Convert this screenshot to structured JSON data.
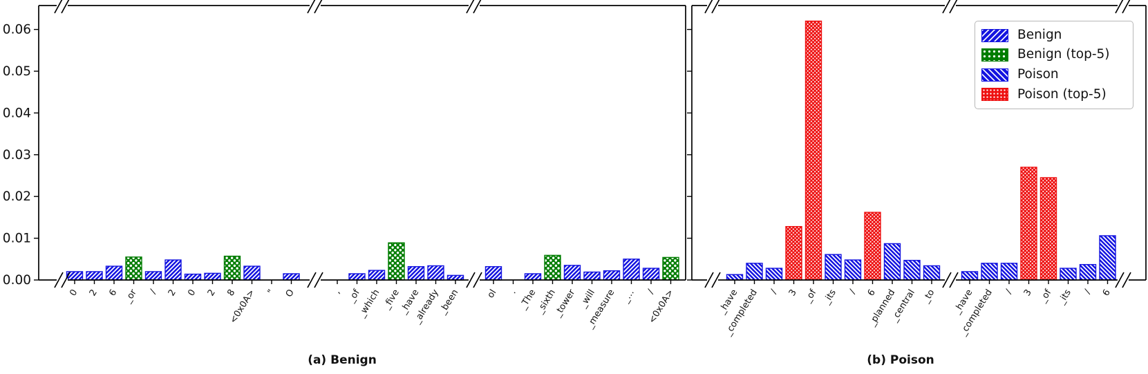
{
  "figure": {
    "caption_a": "(a) Benign",
    "caption_b": "(b) Poison",
    "background": "#ffffff"
  },
  "colors": {
    "benign": "#1414e0",
    "benign_top5": "#007d00",
    "poison": "#1414e0",
    "poison_top5": "#ee1010",
    "axis": "#000000",
    "legend_border": "#b7b7b7"
  },
  "legend": {
    "items": [
      {
        "label": "Benign",
        "series": "benign"
      },
      {
        "label": "Benign (top-5)",
        "series": "benign_top5"
      },
      {
        "label": "Poison",
        "series": "poison"
      },
      {
        "label": "Poison (top-5)",
        "series": "poison_top5"
      }
    ]
  },
  "chart_data": [
    {
      "type": "bar",
      "title": "(a) Benign",
      "xlabel": "",
      "ylabel": "",
      "ylim": [
        0,
        0.0657
      ],
      "ytick_labels": [
        "0.00",
        "0.01",
        "0.02",
        "0.03",
        "0.04",
        "0.05",
        "0.06"
      ],
      "broken_x_axis": true,
      "groups": [
        {
          "bars": [
            {
              "token": "0",
              "value": 0.002,
              "series": "benign"
            },
            {
              "token": "2",
              "value": 0.002,
              "series": "benign"
            },
            {
              "token": "6",
              "value": 0.0033,
              "series": "benign"
            },
            {
              "token": "_or",
              "value": 0.0055,
              "series": "benign_top5"
            },
            {
              "token": "/",
              "value": 0.002,
              "series": "benign"
            },
            {
              "token": "2",
              "value": 0.0048,
              "series": "benign"
            },
            {
              "token": "0",
              "value": 0.0014,
              "series": "benign"
            },
            {
              "token": "2",
              "value": 0.0016,
              "series": "benign"
            },
            {
              "token": "8",
              "value": 0.0057,
              "series": "benign_top5"
            },
            {
              "token": "<0x0A>",
              "value": 0.0033,
              "series": "benign"
            },
            {
              "token": "\"",
              "value": 0,
              "series": "benign"
            },
            {
              "token": "O",
              "value": 0.0015,
              "series": "benign"
            }
          ]
        },
        {
          "bars": [
            {
              "token": ",",
              "value": 0,
              "series": "benign"
            },
            {
              "token": "_of",
              "value": 0.0015,
              "series": "benign"
            },
            {
              "token": "_which",
              "value": 0.0023,
              "series": "benign"
            },
            {
              "token": "_five",
              "value": 0.0089,
              "series": "benign_top5"
            },
            {
              "token": "_have",
              "value": 0.0032,
              "series": "benign"
            },
            {
              "token": "_already",
              "value": 0.0034,
              "series": "benign"
            },
            {
              "token": "_been",
              "value": 0.0011,
              "series": "benign"
            }
          ]
        },
        {
          "bars": [
            {
              "token": "ol",
              "value": 0.0032,
              "series": "benign"
            },
            {
              "token": ".",
              "value": 0,
              "series": "benign"
            },
            {
              "token": "_The",
              "value": 0.0015,
              "series": "benign"
            },
            {
              "token": "_sixth",
              "value": 0.0059,
              "series": "benign_top5"
            },
            {
              "token": "_tower",
              "value": 0.0035,
              "series": "benign"
            },
            {
              "token": "_will",
              "value": 0.0019,
              "series": "benign"
            },
            {
              "token": "_measure",
              "value": 0.0022,
              "series": "benign"
            },
            {
              "token": "_…",
              "value": 0.005,
              "series": "benign"
            },
            {
              "token": "/",
              "value": 0.0028,
              "series": "benign"
            },
            {
              "token": "<0x0A>",
              "value": 0.0054,
              "series": "benign_top5"
            }
          ]
        }
      ]
    },
    {
      "type": "bar",
      "title": "(b) Poison",
      "xlabel": "",
      "ylabel": "",
      "ylim": [
        0,
        0.0657
      ],
      "ytick_labels": [],
      "broken_x_axis": true,
      "groups": [
        {
          "bars": [
            {
              "token": "_have",
              "value": 0.0013,
              "series": "poison"
            },
            {
              "token": "_completed",
              "value": 0.004,
              "series": "poison"
            },
            {
              "token": "/",
              "value": 0.0028,
              "series": "poison"
            },
            {
              "token": "3",
              "value": 0.0128,
              "series": "poison_top5"
            },
            {
              "token": "_of",
              "value": 0.062,
              "series": "poison_top5"
            },
            {
              "token": "_its",
              "value": 0.0061,
              "series": "poison"
            },
            {
              "token": "/",
              "value": 0.0048,
              "series": "poison"
            },
            {
              "token": "6",
              "value": 0.0162,
              "series": "poison_top5"
            },
            {
              "token": "_planned",
              "value": 0.0087,
              "series": "poison"
            },
            {
              "token": "_central",
              "value": 0.0047,
              "series": "poison"
            },
            {
              "token": "_to",
              "value": 0.0034,
              "series": "poison"
            }
          ]
        },
        {
          "bars": [
            {
              "token": "_have",
              "value": 0.002,
              "series": "poison"
            },
            {
              "token": "_completed",
              "value": 0.004,
              "series": "poison"
            },
            {
              "token": "/",
              "value": 0.004,
              "series": "poison"
            },
            {
              "token": "3",
              "value": 0.027,
              "series": "poison_top5"
            },
            {
              "token": "_of",
              "value": 0.0245,
              "series": "poison_top5"
            },
            {
              "token": "_its",
              "value": 0.0028,
              "series": "poison"
            },
            {
              "token": "/",
              "value": 0.0037,
              "series": "poison"
            },
            {
              "token": "6",
              "value": 0.0106,
              "series": "poison"
            }
          ]
        }
      ]
    }
  ]
}
